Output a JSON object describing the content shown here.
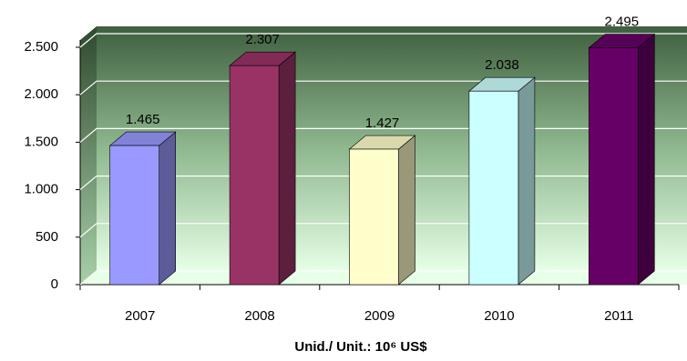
{
  "chart_data": {
    "type": "bar3d",
    "x_label": "Unid./ Unit.: 10⁶ US$",
    "categories": [
      "2007",
      "2008",
      "2009",
      "2010",
      "2011"
    ],
    "values": [
      1465,
      2307,
      1427,
      2038,
      2495
    ],
    "value_labels": [
      "1.465",
      "2.307",
      "1.427",
      "2.038",
      "2.495"
    ],
    "colors": [
      "#9999ff",
      "#993366",
      "#ffffcc",
      "#ccffff",
      "#660066"
    ],
    "ylim": [
      0,
      2500
    ],
    "yticks": [
      0,
      500,
      {
        "value": 1000,
        "label": "1.000"
      },
      {
        "value": 1500,
        "label": "1.500"
      },
      {
        "value": 2000,
        "label": "2.000"
      },
      {
        "value": 2500,
        "label": "2.500"
      }
    ],
    "grid": true
  }
}
